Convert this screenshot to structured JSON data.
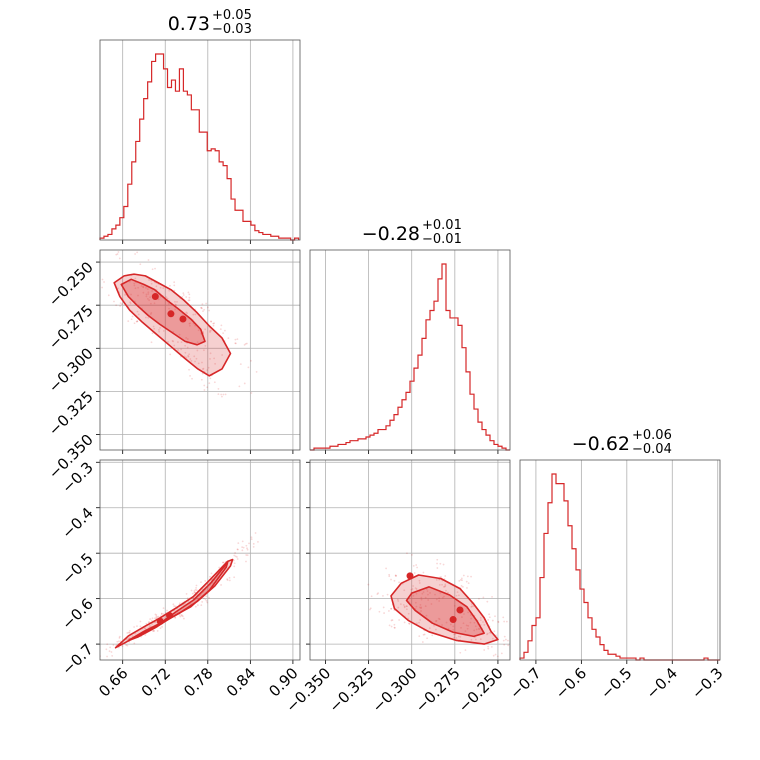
{
  "chart_data": [
    {
      "type": "histogram",
      "panel": "p00",
      "title": {
        "value": "0.73",
        "plus": "+0.05",
        "minus": "−0.03"
      },
      "xlim": [
        0.628,
        0.91
      ],
      "x_ticks": [
        0.66,
        0.72,
        0.78,
        0.84,
        0.9
      ],
      "bins": {
        "start": 0.628,
        "width": 0.0056
      },
      "counts": [
        1,
        2,
        3,
        6,
        8,
        12,
        18,
        30,
        42,
        53,
        65,
        76,
        85,
        96,
        100,
        100,
        92,
        82,
        86,
        80,
        92,
        80,
        78,
        70,
        70,
        58,
        58,
        48,
        49,
        48,
        42,
        40,
        33,
        22,
        16,
        16,
        10,
        10,
        8,
        5,
        4,
        3,
        3,
        2,
        2,
        1,
        1,
        1,
        0,
        1
      ]
    },
    {
      "type": "histogram",
      "panel": "p11",
      "title": {
        "value": "−0.28",
        "plus": "+0.01",
        "minus": "−0.01"
      },
      "xlim": [
        -0.359,
        -0.243
      ],
      "x_ticks": [
        -0.35,
        -0.325,
        -0.3,
        -0.275,
        -0.25
      ],
      "bins": {
        "start": -0.359,
        "width": 0.00232
      },
      "counts": [
        0,
        1,
        1,
        1,
        1,
        2,
        2,
        3,
        3,
        4,
        5,
        5,
        6,
        6,
        7,
        8,
        9,
        11,
        11,
        13,
        16,
        19,
        23,
        27,
        31,
        37,
        44,
        51,
        60,
        70,
        75,
        80,
        92,
        100,
        75,
        71,
        71,
        67,
        55,
        42,
        30,
        22,
        15,
        11,
        8,
        5,
        3,
        2,
        1,
        0
      ]
    },
    {
      "type": "histogram",
      "panel": "p22",
      "title": {
        "value": "−0.62",
        "plus": "+0.06",
        "minus": "−0.04"
      },
      "xlim": [
        -0.735,
        -0.295
      ],
      "x_ticks": [
        -0.7,
        -0.6,
        -0.5,
        -0.4,
        -0.3
      ],
      "bins": {
        "start": -0.735,
        "width": 0.0088
      },
      "counts": [
        1,
        4,
        10,
        18,
        22,
        43,
        66,
        82,
        97,
        92,
        92,
        83,
        70,
        58,
        47,
        37,
        30,
        22,
        16,
        12,
        8,
        5,
        3,
        3,
        2,
        1,
        1,
        1,
        1,
        0,
        1,
        0,
        0,
        0,
        0,
        0,
        0,
        0,
        0,
        0,
        0,
        0,
        0,
        0,
        0,
        0,
        1,
        0,
        0,
        0
      ]
    },
    {
      "type": "contour",
      "panel": "p10",
      "xlim": [
        0.628,
        0.91
      ],
      "ylim": [
        -0.359,
        -0.243
      ],
      "x_ticks": [
        0.66,
        0.72,
        0.78,
        0.84,
        0.9
      ],
      "y_ticks": [
        -0.25,
        -0.275,
        -0.3,
        -0.325,
        -0.35
      ],
      "inner_contour": [
        [
          0.658,
          -0.263
        ],
        [
          0.672,
          -0.26
        ],
        [
          0.69,
          -0.263
        ],
        [
          0.705,
          -0.266
        ],
        [
          0.722,
          -0.272
        ],
        [
          0.738,
          -0.277
        ],
        [
          0.756,
          -0.283
        ],
        [
          0.77,
          -0.289
        ],
        [
          0.776,
          -0.296
        ],
        [
          0.765,
          -0.298
        ],
        [
          0.748,
          -0.296
        ],
        [
          0.73,
          -0.291
        ],
        [
          0.712,
          -0.286
        ],
        [
          0.696,
          -0.281
        ],
        [
          0.68,
          -0.275
        ],
        [
          0.668,
          -0.27
        ]
      ],
      "outer_contour": [
        [
          0.648,
          -0.262
        ],
        [
          0.662,
          -0.258
        ],
        [
          0.676,
          -0.257
        ],
        [
          0.692,
          -0.258
        ],
        [
          0.71,
          -0.262
        ],
        [
          0.728,
          -0.266
        ],
        [
          0.746,
          -0.272
        ],
        [
          0.764,
          -0.279
        ],
        [
          0.782,
          -0.287
        ],
        [
          0.8,
          -0.294
        ],
        [
          0.812,
          -0.303
        ],
        [
          0.8,
          -0.312
        ],
        [
          0.782,
          -0.316
        ],
        [
          0.766,
          -0.312
        ],
        [
          0.748,
          -0.306
        ],
        [
          0.728,
          -0.299
        ],
        [
          0.708,
          -0.292
        ],
        [
          0.688,
          -0.285
        ],
        [
          0.67,
          -0.278
        ],
        [
          0.656,
          -0.27
        ]
      ],
      "peaks": [
        [
          0.706,
          -0.27
        ],
        [
          0.728,
          -0.28
        ],
        [
          0.745,
          -0.283
        ]
      ]
    },
    {
      "type": "contour",
      "panel": "p20",
      "xlim": [
        0.628,
        0.91
      ],
      "ylim": [
        -0.735,
        -0.295
      ],
      "x_ticks": [
        0.66,
        0.72,
        0.78,
        0.84,
        0.9
      ],
      "y_ticks": [
        -0.3,
        -0.4,
        -0.5,
        -0.6,
        -0.7
      ],
      "inner_contour": [
        [
          0.668,
          -0.692
        ],
        [
          0.69,
          -0.672
        ],
        [
          0.712,
          -0.655
        ],
        [
          0.736,
          -0.628
        ],
        [
          0.76,
          -0.603
        ],
        [
          0.784,
          -0.566
        ],
        [
          0.804,
          -0.528
        ],
        [
          0.808,
          -0.52
        ],
        [
          0.806,
          -0.531
        ],
        [
          0.782,
          -0.582
        ],
        [
          0.756,
          -0.618
        ],
        [
          0.73,
          -0.64
        ],
        [
          0.706,
          -0.664
        ],
        [
          0.682,
          -0.684
        ]
      ],
      "outer_contour": [
        [
          0.65,
          -0.708
        ],
        [
          0.668,
          -0.682
        ],
        [
          0.69,
          -0.662
        ],
        [
          0.712,
          -0.643
        ],
        [
          0.736,
          -0.62
        ],
        [
          0.76,
          -0.595
        ],
        [
          0.784,
          -0.557
        ],
        [
          0.808,
          -0.518
        ],
        [
          0.815,
          -0.514
        ],
        [
          0.812,
          -0.528
        ],
        [
          0.79,
          -0.572
        ],
        [
          0.766,
          -0.605
        ],
        [
          0.74,
          -0.632
        ],
        [
          0.716,
          -0.653
        ],
        [
          0.692,
          -0.674
        ],
        [
          0.668,
          -0.693
        ]
      ],
      "peaks": [
        [
          0.713,
          -0.65
        ],
        [
          0.726,
          -0.637
        ]
      ]
    },
    {
      "type": "contour",
      "panel": "p21",
      "xlim": [
        -0.359,
        -0.243
      ],
      "ylim": [
        -0.735,
        -0.295
      ],
      "x_ticks": [
        -0.35,
        -0.325,
        -0.3,
        -0.275,
        -0.25
      ],
      "y_ticks": [
        -0.3,
        -0.4,
        -0.5,
        -0.6,
        -0.7
      ],
      "inner_contour": [
        [
          -0.3,
          -0.588
        ],
        [
          -0.29,
          -0.574
        ],
        [
          -0.278,
          -0.592
        ],
        [
          -0.268,
          -0.618
        ],
        [
          -0.262,
          -0.65
        ],
        [
          -0.258,
          -0.676
        ],
        [
          -0.264,
          -0.683
        ],
        [
          -0.276,
          -0.674
        ],
        [
          -0.288,
          -0.654
        ],
        [
          -0.298,
          -0.626
        ],
        [
          -0.303,
          -0.604
        ]
      ],
      "outer_contour": [
        [
          -0.312,
          -0.594
        ],
        [
          -0.306,
          -0.566
        ],
        [
          -0.296,
          -0.548
        ],
        [
          -0.283,
          -0.556
        ],
        [
          -0.272,
          -0.578
        ],
        [
          -0.264,
          -0.612
        ],
        [
          -0.258,
          -0.642
        ],
        [
          -0.254,
          -0.672
        ],
        [
          -0.25,
          -0.69
        ],
        [
          -0.258,
          -0.7
        ],
        [
          -0.274,
          -0.692
        ],
        [
          -0.29,
          -0.673
        ],
        [
          -0.302,
          -0.648
        ],
        [
          -0.31,
          -0.622
        ]
      ],
      "peaks": [
        [
          -0.301,
          -0.55
        ],
        [
          -0.276,
          -0.646
        ],
        [
          -0.272,
          -0.625
        ]
      ]
    }
  ]
}
